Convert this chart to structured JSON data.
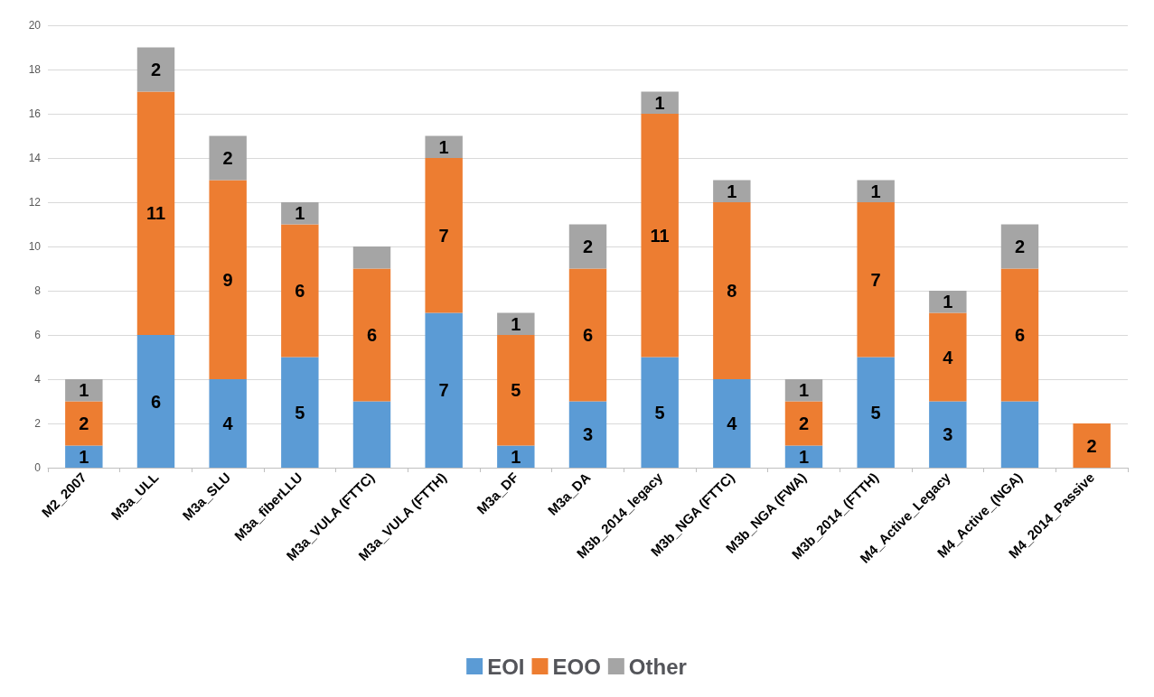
{
  "chart_data": {
    "type": "bar",
    "stacked": true,
    "categories": [
      "M2_2007",
      "M3a_ULL",
      "M3a_SLU",
      "M3a_fiberLLU",
      "M3a_VULA (FTTC)",
      "M3a_VULA (FTTH)",
      "M3a_DF",
      "M3a_DA",
      "M3b_2014_legacy",
      "M3b_NGA (FTTC)",
      "M3b_NGA (FWA)",
      "M3b_2014_(FTTH)",
      "M4_Active_Legacy",
      "M4_Active_(NGA)",
      "M4_2014_Passive"
    ],
    "series": [
      {
        "name": "EOI",
        "color": "#5b9bd5",
        "values": [
          1,
          6,
          4,
          5,
          3,
          7,
          1,
          3,
          5,
          4,
          1,
          5,
          3,
          3,
          null
        ],
        "value_labels": [
          "1",
          "6",
          "4",
          "5",
          null,
          "7",
          "1",
          "3",
          "5",
          "4",
          "1",
          "5",
          "3",
          null,
          null
        ]
      },
      {
        "name": "EOO",
        "color": "#ed7d31",
        "values": [
          2,
          11,
          9,
          6,
          6,
          7,
          5,
          6,
          11,
          8,
          2,
          7,
          4,
          6,
          2
        ],
        "value_labels": [
          "2",
          "11",
          "9",
          "6",
          "6",
          "7",
          "5",
          "6",
          "11",
          "8",
          "2",
          "7",
          "4",
          "6",
          "2"
        ]
      },
      {
        "name": "Other",
        "color": "#a5a5a5",
        "values": [
          1,
          2,
          2,
          1,
          1,
          1,
          1,
          2,
          1,
          1,
          1,
          1,
          1,
          2,
          null
        ],
        "value_labels": [
          "1",
          "2",
          "2",
          "1",
          null,
          "1",
          "1",
          "2",
          "1",
          "1",
          "1",
          "1",
          "1",
          "2",
          null
        ]
      }
    ],
    "ylim": [
      0,
      20
    ],
    "yticks": [
      0,
      2,
      4,
      6,
      8,
      10,
      12,
      14,
      16,
      18,
      20
    ],
    "grid": "y",
    "legend": "bottom"
  }
}
